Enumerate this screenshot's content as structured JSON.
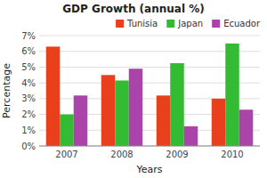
{
  "chart_data": {
    "type": "bar",
    "title": "GDP Growth (annual %)",
    "xlabel": "Years",
    "ylabel": "Percentage",
    "categories": [
      "2007",
      "2008",
      "2009",
      "2010"
    ],
    "series": [
      {
        "name": "Tunisia",
        "color": "#E8401C",
        "values": [
          6.3,
          4.5,
          3.2,
          3.0
        ]
      },
      {
        "name": "Japan",
        "color": "#33BB33",
        "values": [
          2.0,
          4.15,
          5.25,
          6.5
        ]
      },
      {
        "name": "Ecuador",
        "color": "#AA44AA",
        "values": [
          3.2,
          4.9,
          1.25,
          2.3
        ]
      }
    ],
    "ylim": [
      0,
      7
    ],
    "yticks": [
      {
        "value": 0,
        "label": "0%"
      },
      {
        "value": 1,
        "label": "1%"
      },
      {
        "value": 2,
        "label": "2%"
      },
      {
        "value": 3,
        "label": "3%"
      },
      {
        "value": 4,
        "label": "4%"
      },
      {
        "value": 5,
        "label": "5%"
      },
      {
        "value": 6,
        "label": "6%"
      },
      {
        "value": 7,
        "label": "7%"
      }
    ],
    "grid": true,
    "legend": "upper right"
  }
}
